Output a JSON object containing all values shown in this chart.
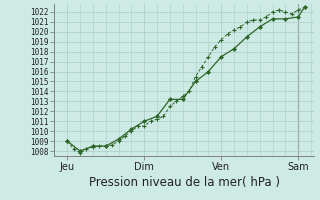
{
  "background_color": "#ceeae4",
  "grid_color": "#a8ccc8",
  "line_color": "#2d6628",
  "marker_color": "#2d6628",
  "ylabel_ticks": [
    1008,
    1009,
    1010,
    1011,
    1012,
    1013,
    1014,
    1015,
    1016,
    1017,
    1018,
    1019,
    1020,
    1021,
    1022
  ],
  "ylim": [
    1007.5,
    1022.8
  ],
  "xlabel": "Pression niveau de la mer( hPa )",
  "day_labels": [
    "Jeu",
    "Dim",
    "Ven",
    "Sam"
  ],
  "day_positions": [
    0.0,
    3.0,
    6.0,
    9.0
  ],
  "series1_x": [
    0.0,
    0.25,
    0.5,
    0.75,
    1.0,
    1.25,
    1.5,
    1.75,
    2.0,
    2.25,
    2.5,
    2.75,
    3.0,
    3.25,
    3.5,
    3.75,
    4.0,
    4.25,
    4.5,
    4.75,
    5.0,
    5.25,
    5.5,
    5.75,
    6.0,
    6.25,
    6.5,
    6.75,
    7.0,
    7.25,
    7.5,
    7.75,
    8.0,
    8.25,
    8.5,
    8.75,
    9.0,
    9.25
  ],
  "series1_y": [
    1009.0,
    1008.2,
    1007.8,
    1008.2,
    1008.4,
    1008.5,
    1008.5,
    1008.6,
    1009.0,
    1009.5,
    1010.0,
    1010.5,
    1010.5,
    1011.0,
    1011.2,
    1011.5,
    1012.5,
    1013.0,
    1013.5,
    1014.0,
    1015.5,
    1016.5,
    1017.5,
    1018.5,
    1019.2,
    1019.8,
    1020.2,
    1020.5,
    1021.0,
    1021.2,
    1021.2,
    1021.5,
    1022.0,
    1022.2,
    1022.0,
    1021.8,
    1022.2,
    1022.5
  ],
  "series2_x": [
    0.0,
    0.5,
    1.0,
    1.5,
    2.0,
    2.5,
    3.0,
    3.5,
    4.0,
    4.5,
    5.0,
    5.5,
    6.0,
    6.5,
    7.0,
    7.5,
    8.0,
    8.5,
    9.0,
    9.25
  ],
  "series2_y": [
    1009.0,
    1008.0,
    1008.5,
    1008.5,
    1009.2,
    1010.2,
    1011.0,
    1011.5,
    1013.2,
    1013.2,
    1015.0,
    1016.0,
    1017.5,
    1018.3,
    1019.5,
    1020.5,
    1021.3,
    1021.3,
    1021.5,
    1022.5
  ],
  "xlim": [
    -0.15,
    9.6
  ],
  "tick_fontsize": 5.5,
  "label_fontsize": 8.5,
  "xtick_fontsize": 7.0,
  "vline_color": "#707070",
  "spine_color": "#808080"
}
